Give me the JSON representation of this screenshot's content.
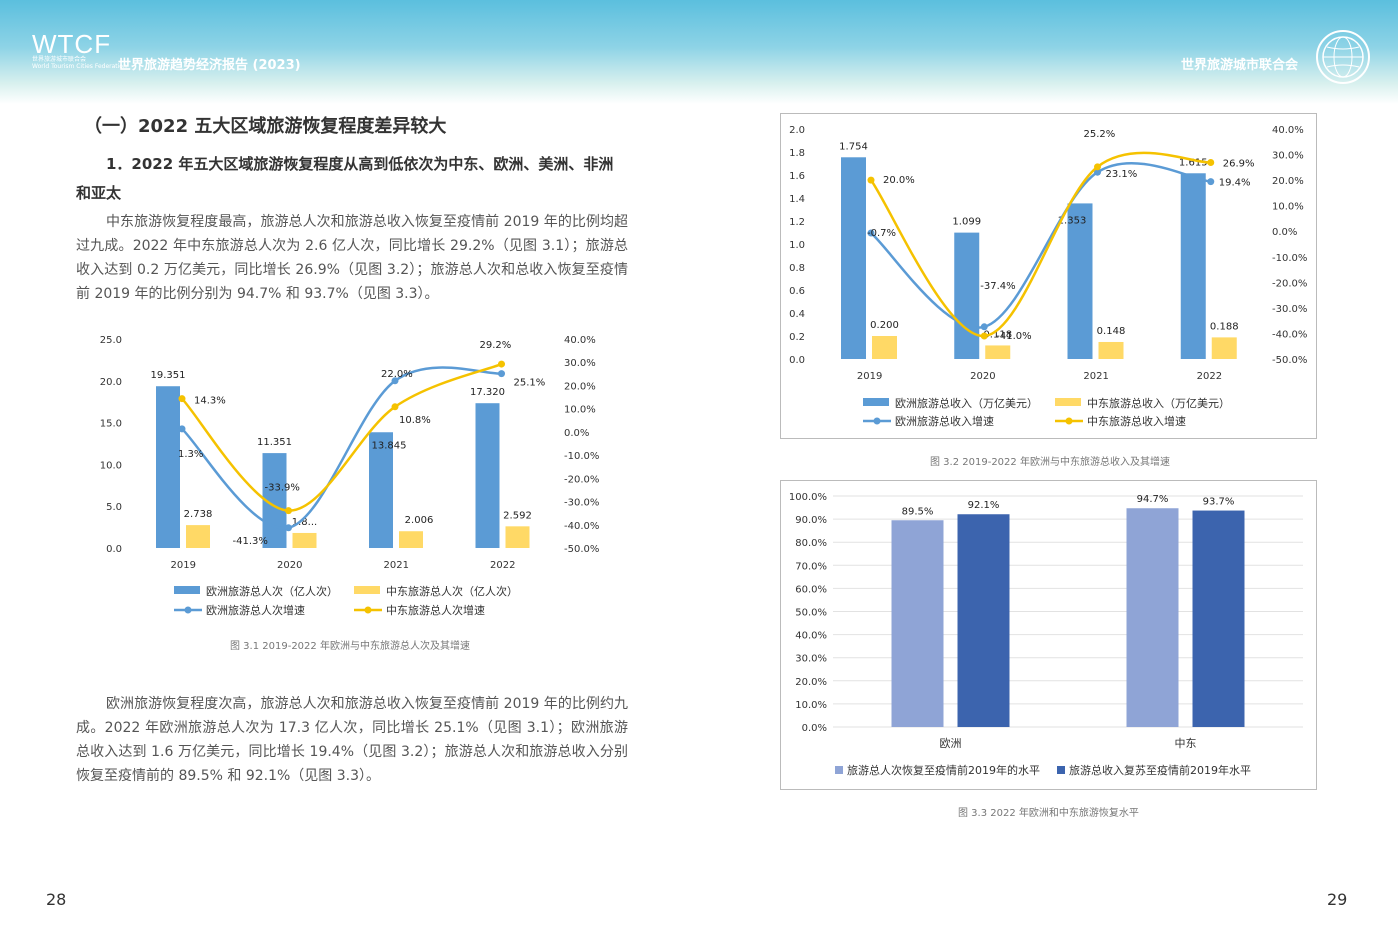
{
  "header": {
    "logo": "WTCF",
    "logo_sub1": "世界旅游城市联合会",
    "logo_sub2": "World Tourism Cities Federation",
    "title": "世界旅游趋势经济报告 (2023)",
    "org": "世界旅游城市联合会"
  },
  "section_title": "（一）2022 五大区域旅游恢复程度差异较大",
  "sub_title": "1．2022 年五大区域旅游恢复程度从高到低依次为中东、欧洲、美洲、非洲和亚太",
  "para1": "中东旅游恢复程度最高，旅游总人次和旅游总收入恢复至疫情前 2019 年的比例均超过九成。2022 年中东旅游总人次为 2.6 亿人次，同比增长 29.2%（见图 3.1）；旅游总收入达到 0.2 万亿美元，同比增长 26.9%（见图 3.2）；旅游总人次和总收入恢复至疫情前 2019 年的比例分别为 94.7% 和 93.7%（见图 3.3）。",
  "para2": "欧洲旅游恢复程度次高，旅游总人次和旅游总收入恢复至疫情前 2019 年的比例约九成。2022 年欧洲旅游总人次为 17.3 亿人次，同比增长 25.1%（见图 3.1）；欧洲旅游总收入达到 1.6 万亿美元，同比增长 19.4%（见图 3.2）；旅游总人次和旅游总收入分别恢复至疫情前的 89.5% 和 92.1%（见图 3.3）。",
  "captions": {
    "fig31": "图 3.1 2019-2022 年欧洲与中东旅游总人次及其增速",
    "fig32": "图 3.2 2019-2022 年欧洲与中东旅游总收入及其增速",
    "fig33": "图 3.3 2022 年欧洲和中东旅游恢复水平"
  },
  "pages": {
    "left": "28",
    "right": "29"
  },
  "chart_data": [
    {
      "type": "bar",
      "id": "fig31",
      "categories": [
        "2019",
        "2020",
        "2021",
        "2022"
      ],
      "series": [
        {
          "name": "欧洲旅游总人次（亿人次）",
          "type": "bar",
          "axis": "left",
          "values": [
            19.351,
            11.351,
            13.845,
            17.32
          ],
          "labels": [
            "19.351",
            "11.351",
            "13.845",
            "17.320"
          ],
          "color": "#5b9bd5"
        },
        {
          "name": "中东旅游总人次（亿人次）",
          "type": "bar",
          "axis": "left",
          "values": [
            2.738,
            1.8,
            2.006,
            2.592
          ],
          "labels": [
            "2.738",
            "1.8...",
            "2.006",
            "2.592"
          ],
          "color": "#ffd966"
        },
        {
          "name": "欧洲旅游总人次增速",
          "type": "line",
          "axis": "right",
          "values": [
            1.3,
            -41.3,
            22.0,
            25.1
          ],
          "labels": [
            "1.3%",
            "-41.3%",
            "22.0%",
            "25.1%"
          ],
          "color": "#5b9bd5"
        },
        {
          "name": "中东旅游总人次增速",
          "type": "line",
          "axis": "right",
          "values": [
            14.3,
            -33.9,
            10.8,
            29.2
          ],
          "labels": [
            "14.3%",
            "-33.9%",
            "10.8%",
            "29.2%"
          ],
          "color": "#f5c200"
        }
      ],
      "left_axis": {
        "min": 0,
        "max": 25,
        "ticks": [
          "0.0",
          "5.0",
          "10.0",
          "15.0",
          "20.0",
          "25.0"
        ]
      },
      "right_axis": {
        "min": -50,
        "max": 40,
        "ticks": [
          "-50.0%",
          "-40.0%",
          "-30.0%",
          "-20.0%",
          "-10.0%",
          "0.0%",
          "10.0%",
          "20.0%",
          "30.0%",
          "40.0%"
        ]
      },
      "legend_position": "bottom"
    },
    {
      "type": "bar",
      "id": "fig32",
      "categories": [
        "2019",
        "2020",
        "2021",
        "2022"
      ],
      "series": [
        {
          "name": "欧洲旅游总收入（万亿美元）",
          "type": "bar",
          "axis": "left",
          "values": [
            1.754,
            1.099,
            1.353,
            1.615
          ],
          "labels": [
            "1.754",
            "1.099",
            "1.353",
            "1.615"
          ],
          "color": "#5b9bd5"
        },
        {
          "name": "中东旅游总收入（万亿美元）",
          "type": "bar",
          "axis": "left",
          "values": [
            0.2,
            0.118,
            0.148,
            0.188
          ],
          "labels": [
            "0.200",
            "0.118",
            "0.148",
            "0.188"
          ],
          "color": "#ffd966"
        },
        {
          "name": "欧洲旅游总收入增速",
          "type": "line",
          "axis": "right",
          "values": [
            -0.7,
            -37.4,
            23.1,
            19.4
          ],
          "labels": [
            "-0.7%",
            "-37.4%",
            "23.1%",
            "19.4%"
          ],
          "color": "#5b9bd5"
        },
        {
          "name": "中东旅游总收入增速",
          "type": "line",
          "axis": "right",
          "values": [
            20.0,
            -41.0,
            25.2,
            26.9
          ],
          "labels": [
            "20.0%",
            "-41.0%",
            "25.2%",
            "26.9%"
          ],
          "color": "#f5c200"
        }
      ],
      "left_axis": {
        "min": 0,
        "max": 2,
        "ticks": [
          "0.0",
          "0.2",
          "0.4",
          "0.6",
          "0.8",
          "1.0",
          "1.2",
          "1.4",
          "1.6",
          "1.8",
          "2.0"
        ]
      },
      "right_axis": {
        "min": -50,
        "max": 40,
        "ticks": [
          "-50.0%",
          "-40.0%",
          "-30.0%",
          "-20.0%",
          "-10.0%",
          "0.0%",
          "10.0%",
          "20.0%",
          "30.0%",
          "40.0%"
        ]
      },
      "legend_position": "bottom"
    },
    {
      "type": "bar",
      "id": "fig33",
      "categories": [
        "欧洲",
        "中东"
      ],
      "series": [
        {
          "name": "旅游总人次恢复至疫情前2019年的水平",
          "values": [
            89.5,
            94.7
          ],
          "labels": [
            "89.5%",
            "94.7%"
          ],
          "color": "#8fa4d6"
        },
        {
          "name": "旅游总收入复苏至疫情前2019年水平",
          "values": [
            92.1,
            93.7
          ],
          "labels": [
            "92.1%",
            "93.7%"
          ],
          "color": "#3c64ae"
        }
      ],
      "y_axis": {
        "min": 0,
        "max": 100,
        "ticks": [
          "0.0%",
          "10.0%",
          "20.0%",
          "30.0%",
          "40.0%",
          "50.0%",
          "60.0%",
          "70.0%",
          "80.0%",
          "90.0%",
          "100.0%"
        ]
      },
      "grid": true,
      "legend_position": "bottom"
    }
  ]
}
